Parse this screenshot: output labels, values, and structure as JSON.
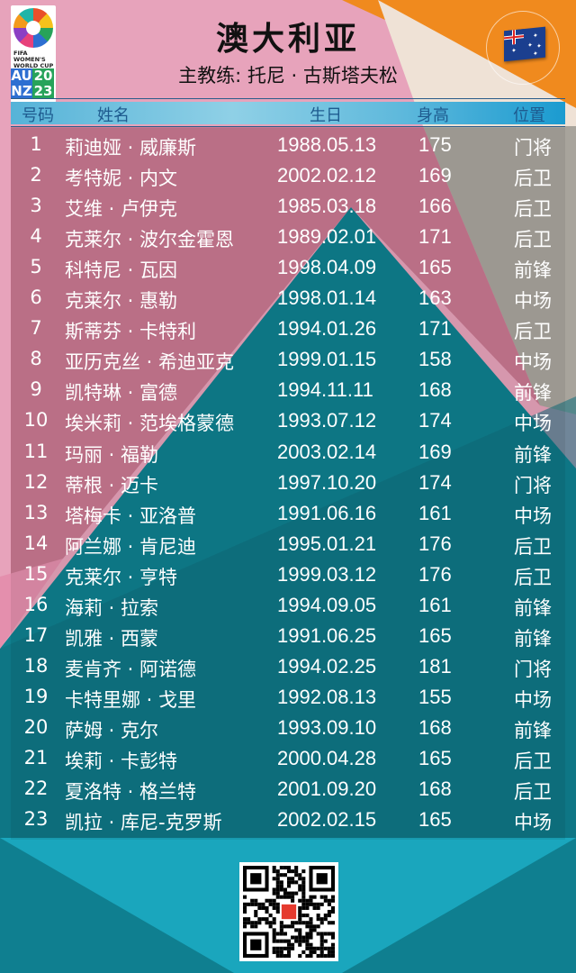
{
  "logo": {
    "line1": "FIFA",
    "line2": "WOMEN'S",
    "line3": "WORLD CUP",
    "codes": [
      "AU",
      "20",
      "NZ",
      "23"
    ]
  },
  "title": "澳大利亚",
  "coach": "主教练: 托尼 · 古斯塔夫松",
  "flag": "australia-flag",
  "headers": {
    "number": "号码",
    "name": "姓名",
    "birth": "生日",
    "height": "身高",
    "position": "位置"
  },
  "players": [
    {
      "no": "1",
      "name": "莉迪娅 · 威廉斯",
      "birth": "1988.05.13",
      "height": "175",
      "pos": "门将"
    },
    {
      "no": "2",
      "name": "考特妮 · 内文",
      "birth": "2002.02.12",
      "height": "169",
      "pos": "后卫"
    },
    {
      "no": "3",
      "name": "艾维 · 卢伊克",
      "birth": "1985.03.18",
      "height": "166",
      "pos": "后卫"
    },
    {
      "no": "4",
      "name": "克莱尔 · 波尔金霍恩",
      "birth": "1989.02.01",
      "height": "171",
      "pos": "后卫"
    },
    {
      "no": "5",
      "name": "科特尼 · 瓦因",
      "birth": "1998.04.09",
      "height": "165",
      "pos": "前锋"
    },
    {
      "no": "6",
      "name": "克莱尔 · 惠勒",
      "birth": "1998.01.14",
      "height": "163",
      "pos": "中场"
    },
    {
      "no": "7",
      "name": "斯蒂芬 · 卡特利",
      "birth": "1994.01.26",
      "height": "171",
      "pos": "后卫"
    },
    {
      "no": "8",
      "name": "亚历克丝 · 希迪亚克",
      "birth": "1999.01.15",
      "height": "158",
      "pos": "中场"
    },
    {
      "no": "9",
      "name": "凯特琳 · 富德",
      "birth": "1994.11.11",
      "height": "168",
      "pos": "前锋"
    },
    {
      "no": "10",
      "name": "埃米莉 · 范埃格蒙德",
      "birth": "1993.07.12",
      "height": "174",
      "pos": "中场"
    },
    {
      "no": "11",
      "name": "玛丽 · 福勒",
      "birth": "2003.02.14",
      "height": "169",
      "pos": "前锋"
    },
    {
      "no": "12",
      "name": "蒂根 · 迈卡",
      "birth": "1997.10.20",
      "height": "174",
      "pos": "门将"
    },
    {
      "no": "13",
      "name": "塔梅卡 · 亚洛普",
      "birth": "1991.06.16",
      "height": "161",
      "pos": "中场"
    },
    {
      "no": "14",
      "name": "阿兰娜 · 肯尼迪",
      "birth": "1995.01.21",
      "height": "176",
      "pos": "后卫"
    },
    {
      "no": "15",
      "name": "克莱尔 · 亨特",
      "birth": "1999.03.12",
      "height": "176",
      "pos": "后卫"
    },
    {
      "no": "16",
      "name": "海莉 · 拉索",
      "birth": "1994.09.05",
      "height": "161",
      "pos": "前锋"
    },
    {
      "no": "17",
      "name": "凯雅 · 西蒙",
      "birth": "1991.06.25",
      "height": "165",
      "pos": "前锋"
    },
    {
      "no": "18",
      "name": "麦肯齐 · 阿诺德",
      "birth": "1994.02.25",
      "height": "181",
      "pos": "门将"
    },
    {
      "no": "19",
      "name": "卡特里娜 · 戈里",
      "birth": "1992.08.13",
      "height": "155",
      "pos": "中场"
    },
    {
      "no": "20",
      "name": "萨姆 · 克尔",
      "birth": "1993.09.10",
      "height": "168",
      "pos": "前锋"
    },
    {
      "no": "21",
      "name": "埃莉 · 卡彭特",
      "birth": "2000.04.28",
      "height": "165",
      "pos": "后卫"
    },
    {
      "no": "22",
      "name": "夏洛特 · 格兰特",
      "birth": "2001.09.20",
      "height": "168",
      "pos": "后卫"
    },
    {
      "no": "23",
      "name": "凯拉 · 库尼-克罗斯",
      "birth": "2002.02.15",
      "height": "165",
      "pos": "中场"
    }
  ],
  "colors": {
    "pink": "#e59ab3",
    "teal": "#0f7f8e",
    "orange": "#f08a1e",
    "grey": "#a8a49c",
    "header": "#5fb9dc"
  }
}
